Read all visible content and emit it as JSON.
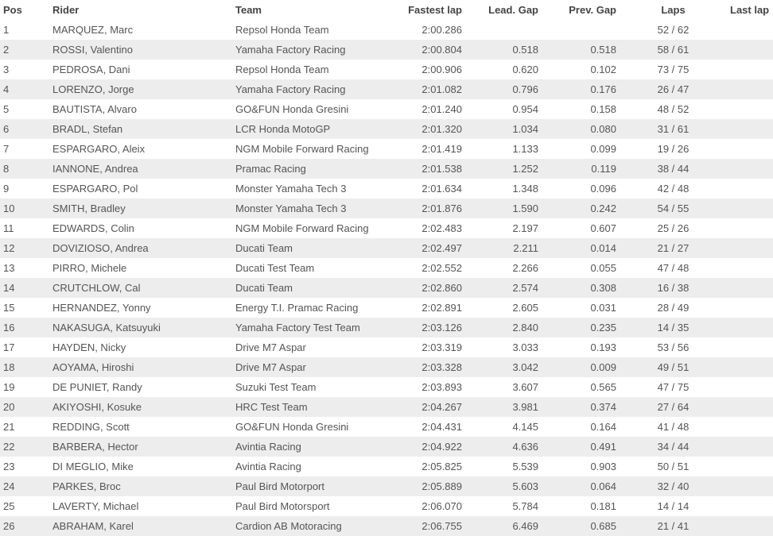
{
  "headers": {
    "pos": "Pos",
    "rider": "Rider",
    "team": "Team",
    "fastest": "Fastest lap",
    "lead": "Lead. Gap",
    "prev": "Prev. Gap",
    "laps": "Laps",
    "last": "Last lap"
  },
  "rows": [
    {
      "pos": "1",
      "rider": "MARQUEZ, Marc",
      "team": "Repsol Honda Team",
      "fastest": "2:00.286",
      "lead": "",
      "prev": "",
      "laps": "52 / 62",
      "last": ""
    },
    {
      "pos": "2",
      "rider": "ROSSI, Valentino",
      "team": "Yamaha Factory Racing",
      "fastest": "2:00.804",
      "lead": "0.518",
      "prev": "0.518",
      "laps": "58 / 61",
      "last": ""
    },
    {
      "pos": "3",
      "rider": "PEDROSA, Dani",
      "team": "Repsol Honda Team",
      "fastest": "2:00.906",
      "lead": "0.620",
      "prev": "0.102",
      "laps": "73 / 75",
      "last": ""
    },
    {
      "pos": "4",
      "rider": "LORENZO, Jorge",
      "team": "Yamaha Factory Racing",
      "fastest": "2:01.082",
      "lead": "0.796",
      "prev": "0.176",
      "laps": "26 / 47",
      "last": ""
    },
    {
      "pos": "5",
      "rider": "BAUTISTA, Alvaro",
      "team": "GO&FUN Honda Gresini",
      "fastest": "2:01.240",
      "lead": "0.954",
      "prev": "0.158",
      "laps": "48 / 52",
      "last": ""
    },
    {
      "pos": "6",
      "rider": "BRADL, Stefan",
      "team": "LCR Honda MotoGP",
      "fastest": "2:01.320",
      "lead": "1.034",
      "prev": "0.080",
      "laps": "31 / 61",
      "last": ""
    },
    {
      "pos": "7",
      "rider": "ESPARGARO, Aleix",
      "team": "NGM Mobile Forward Racing",
      "fastest": "2:01.419",
      "lead": "1.133",
      "prev": "0.099",
      "laps": "19 / 26",
      "last": ""
    },
    {
      "pos": "8",
      "rider": "IANNONE, Andrea",
      "team": "Pramac Racing",
      "fastest": "2:01.538",
      "lead": "1.252",
      "prev": "0.119",
      "laps": "38 / 44",
      "last": ""
    },
    {
      "pos": "9",
      "rider": "ESPARGARO, Pol",
      "team": "Monster Yamaha Tech 3",
      "fastest": "2:01.634",
      "lead": "1.348",
      "prev": "0.096",
      "laps": "42 / 48",
      "last": ""
    },
    {
      "pos": "10",
      "rider": "SMITH, Bradley",
      "team": "Monster Yamaha Tech 3",
      "fastest": "2:01.876",
      "lead": "1.590",
      "prev": "0.242",
      "laps": "54 / 55",
      "last": ""
    },
    {
      "pos": "11",
      "rider": "EDWARDS, Colin",
      "team": "NGM Mobile Forward Racing",
      "fastest": "2:02.483",
      "lead": "2.197",
      "prev": "0.607",
      "laps": "25 / 26",
      "last": ""
    },
    {
      "pos": "12",
      "rider": "DOVIZIOSO, Andrea",
      "team": "Ducati Team",
      "fastest": "2:02.497",
      "lead": "2.211",
      "prev": "0.014",
      "laps": "21 / 27",
      "last": ""
    },
    {
      "pos": "13",
      "rider": "PIRRO, Michele",
      "team": "Ducati Test Team",
      "fastest": "2:02.552",
      "lead": "2.266",
      "prev": "0.055",
      "laps": "47 / 48",
      "last": ""
    },
    {
      "pos": "14",
      "rider": "CRUTCHLOW, Cal",
      "team": "Ducati Team",
      "fastest": "2:02.860",
      "lead": "2.574",
      "prev": "0.308",
      "laps": "16 / 38",
      "last": ""
    },
    {
      "pos": "15",
      "rider": "HERNANDEZ, Yonny",
      "team": "Energy T.I. Pramac Racing",
      "fastest": "2:02.891",
      "lead": "2.605",
      "prev": "0.031",
      "laps": "28 / 49",
      "last": ""
    },
    {
      "pos": "16",
      "rider": "NAKASUGA, Katsuyuki",
      "team": "Yamaha Factory Test Team",
      "fastest": "2:03.126",
      "lead": "2.840",
      "prev": "0.235",
      "laps": "14 / 35",
      "last": ""
    },
    {
      "pos": "17",
      "rider": "HAYDEN, Nicky",
      "team": "Drive M7 Aspar",
      "fastest": "2:03.319",
      "lead": "3.033",
      "prev": "0.193",
      "laps": "53 / 56",
      "last": ""
    },
    {
      "pos": "18",
      "rider": "AOYAMA, Hiroshi",
      "team": "Drive M7 Aspar",
      "fastest": "2:03.328",
      "lead": "3.042",
      "prev": "0.009",
      "laps": "49 / 51",
      "last": ""
    },
    {
      "pos": "19",
      "rider": "DE PUNIET, Randy",
      "team": "Suzuki Test Team",
      "fastest": "2:03.893",
      "lead": "3.607",
      "prev": "0.565",
      "laps": "47 / 75",
      "last": ""
    },
    {
      "pos": "20",
      "rider": "AKIYOSHI, Kosuke",
      "team": "HRC Test Team",
      "fastest": "2:04.267",
      "lead": "3.981",
      "prev": "0.374",
      "laps": "27 / 64",
      "last": ""
    },
    {
      "pos": "21",
      "rider": "REDDING, Scott",
      "team": "GO&FUN Honda Gresini",
      "fastest": "2:04.431",
      "lead": "4.145",
      "prev": "0.164",
      "laps": "41 / 48",
      "last": ""
    },
    {
      "pos": "22",
      "rider": "BARBERA, Hector",
      "team": "Avintia Racing",
      "fastest": "2:04.922",
      "lead": "4.636",
      "prev": "0.491",
      "laps": "34 / 44",
      "last": ""
    },
    {
      "pos": "23",
      "rider": "DI MEGLIO, Mike",
      "team": "Avintia Racing",
      "fastest": "2:05.825",
      "lead": "5.539",
      "prev": "0.903",
      "laps": "50 / 51",
      "last": ""
    },
    {
      "pos": "24",
      "rider": "PARKES, Broc",
      "team": "Paul Bird Motorport",
      "fastest": "2:05.889",
      "lead": "5.603",
      "prev": "0.064",
      "laps": "32 / 40",
      "last": ""
    },
    {
      "pos": "25",
      "rider": "LAVERTY, Michael",
      "team": "Paul Bird Motorsport",
      "fastest": "2:06.070",
      "lead": "5.784",
      "prev": "0.181",
      "laps": "14 / 14",
      "last": ""
    },
    {
      "pos": "26",
      "rider": "ABRAHAM, Karel",
      "team": "Cardion AB Motoracing",
      "fastest": "2:06.755",
      "lead": "6.469",
      "prev": "0.685",
      "laps": "21 / 41",
      "last": ""
    }
  ]
}
